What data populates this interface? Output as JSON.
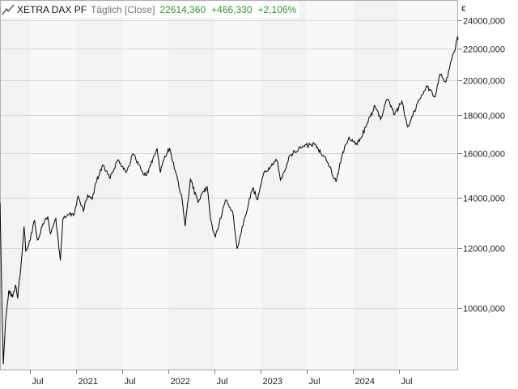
{
  "header": {
    "name": "XETRA DAX PF",
    "mode": "Täglich [Close]",
    "last": "22614,360",
    "change": "+466,330",
    "change_pct": "+2,106%",
    "positive_color": "#2aa02a",
    "chart_icon": "line-chart-icon"
  },
  "chart_data": {
    "type": "line",
    "title": "XETRA DAX PF",
    "ylabel": "€",
    "grid": true,
    "yscale": "log",
    "ylim": [
      8300,
      25500
    ],
    "xlim": [
      "2020-03-05",
      "2025-02-20"
    ],
    "yticks": [
      10000,
      12000,
      14000,
      16000,
      18000,
      20000,
      22000,
      24000
    ],
    "ytick_labels": [
      "10000,000",
      "12000,000",
      "14000,000",
      "16000,000",
      "18000,000",
      "20000,000",
      "22000,000",
      "24000,000"
    ],
    "xticks": [
      {
        "date": "2020-07-01",
        "label": "Jul"
      },
      {
        "date": "2021-01-01",
        "label": "2021"
      },
      {
        "date": "2021-07-01",
        "label": "Jul"
      },
      {
        "date": "2022-01-01",
        "label": "2022"
      },
      {
        "date": "2022-07-01",
        "label": "Jul"
      },
      {
        "date": "2023-01-01",
        "label": "2023"
      },
      {
        "date": "2023-07-01",
        "label": "Jul"
      },
      {
        "date": "2024-01-01",
        "label": "2024"
      },
      {
        "date": "2024-07-01",
        "label": "Jul"
      }
    ],
    "series": [
      {
        "color": "#000000",
        "points": [
          [
            "2020-03-05",
            13800
          ],
          [
            "2020-03-12",
            10400
          ],
          [
            "2020-03-18",
            8440
          ],
          [
            "2020-03-27",
            9650
          ],
          [
            "2020-04-09",
            10560
          ],
          [
            "2020-04-24",
            10340
          ],
          [
            "2020-05-05",
            10730
          ],
          [
            "2020-05-14",
            10300
          ],
          [
            "2020-05-29",
            11590
          ],
          [
            "2020-06-08",
            12820
          ],
          [
            "2020-06-15",
            11900
          ],
          [
            "2020-06-26",
            12090
          ],
          [
            "2020-07-20",
            13050
          ],
          [
            "2020-07-31",
            12300
          ],
          [
            "2020-08-28",
            13030
          ],
          [
            "2020-09-10",
            13200
          ],
          [
            "2020-09-21",
            12540
          ],
          [
            "2020-10-12",
            13130
          ],
          [
            "2020-10-30",
            11560
          ],
          [
            "2020-11-09",
            13100
          ],
          [
            "2020-12-04",
            13300
          ],
          [
            "2020-12-21",
            13250
          ],
          [
            "2021-01-08",
            14050
          ],
          [
            "2021-01-29",
            13430
          ],
          [
            "2021-02-15",
            14100
          ],
          [
            "2021-03-05",
            13920
          ],
          [
            "2021-03-19",
            14620
          ],
          [
            "2021-04-16",
            15450
          ],
          [
            "2021-05-12",
            14850
          ],
          [
            "2021-06-15",
            15700
          ],
          [
            "2021-07-19",
            15130
          ],
          [
            "2021-08-13",
            15980
          ],
          [
            "2021-09-20",
            15130
          ],
          [
            "2021-10-06",
            14970
          ],
          [
            "2021-11-17",
            16250
          ],
          [
            "2021-11-30",
            15100
          ],
          [
            "2021-12-10",
            15620
          ],
          [
            "2022-01-05",
            16270
          ],
          [
            "2022-01-27",
            15200
          ],
          [
            "2022-02-24",
            13900
          ],
          [
            "2022-03-08",
            12830
          ],
          [
            "2022-03-29",
            14820
          ],
          [
            "2022-04-27",
            13800
          ],
          [
            "2022-06-03",
            14460
          ],
          [
            "2022-06-16",
            13120
          ],
          [
            "2022-07-05",
            12400
          ],
          [
            "2022-08-16",
            13900
          ],
          [
            "2022-09-12",
            13400
          ],
          [
            "2022-09-29",
            11980
          ],
          [
            "2022-10-26",
            13050
          ],
          [
            "2022-11-30",
            14400
          ],
          [
            "2022-12-20",
            13900
          ],
          [
            "2023-01-13",
            15080
          ],
          [
            "2023-03-06",
            15650
          ],
          [
            "2023-03-20",
            14760
          ],
          [
            "2023-04-28",
            15920
          ],
          [
            "2023-06-16",
            16350
          ],
          [
            "2023-07-31",
            16450
          ],
          [
            "2023-09-15",
            15800
          ],
          [
            "2023-10-26",
            14680
          ],
          [
            "2023-11-16",
            15800
          ],
          [
            "2023-12-14",
            16750
          ],
          [
            "2024-01-17",
            16430
          ],
          [
            "2024-02-23",
            17400
          ],
          [
            "2024-03-28",
            18490
          ],
          [
            "2024-04-19",
            17740
          ],
          [
            "2024-05-15",
            18860
          ],
          [
            "2024-06-14",
            18000
          ],
          [
            "2024-07-12",
            18750
          ],
          [
            "2024-08-05",
            17340
          ],
          [
            "2024-09-12",
            18620
          ],
          [
            "2024-10-18",
            19650
          ],
          [
            "2024-11-21",
            19000
          ],
          [
            "2024-12-09",
            20340
          ],
          [
            "2024-12-30",
            19910
          ],
          [
            "2025-01-10",
            20180
          ],
          [
            "2025-01-24",
            21200
          ],
          [
            "2025-02-06",
            21800
          ],
          [
            "2025-02-18",
            22800
          ],
          [
            "2025-02-20",
            22614
          ]
        ]
      }
    ]
  }
}
